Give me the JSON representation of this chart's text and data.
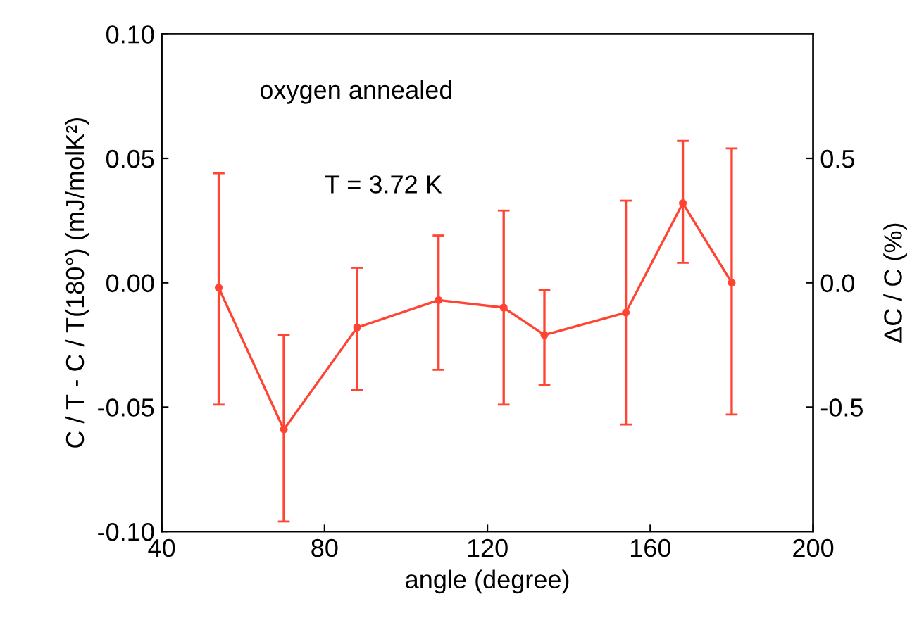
{
  "chart_data": {
    "type": "line",
    "xlabel": "angle (degree)",
    "ylabel": "C / T - C / T(180°) (mJ/molK²)",
    "y2label": "ΔC / C (%)",
    "annotations": [
      "oxygen annealed",
      "T = 3.72 K"
    ],
    "x": [
      54,
      70,
      88,
      108,
      124,
      134,
      154,
      168,
      180
    ],
    "series": [
      {
        "color": "#ff4433",
        "values": [
          -0.002,
          -0.059,
          -0.018,
          -0.007,
          -0.01,
          -0.021,
          -0.012,
          0.032,
          0.0
        ],
        "errors": [
          [
            -0.049,
            0.044
          ],
          [
            -0.096,
            -0.021
          ],
          [
            -0.043,
            0.006
          ],
          [
            -0.035,
            0.019
          ],
          [
            -0.049,
            0.029
          ],
          [
            -0.041,
            -0.003
          ],
          [
            -0.057,
            0.033
          ],
          [
            0.008,
            0.057
          ],
          [
            -0.053,
            0.054
          ]
        ]
      }
    ],
    "xlim": [
      40,
      200
    ],
    "xticks": [
      40,
      80,
      120,
      160,
      200
    ],
    "ylim": [
      -0.1,
      0.1
    ],
    "yticks": [
      {
        "value": -0.1,
        "label": "-0.10"
      },
      {
        "value": -0.05,
        "label": "-0.05"
      },
      {
        "value": 0,
        "label": "0.00"
      },
      {
        "value": 0.05,
        "label": "0.05"
      },
      {
        "value": 0.1,
        "label": "0.10"
      }
    ],
    "y2lim": [
      -1,
      1
    ],
    "y2ticks": [
      {
        "value": -0.5,
        "label": "-0.5"
      },
      {
        "value": 0,
        "label": "0.0"
      },
      {
        "value": 0.5,
        "label": "0.5"
      }
    ],
    "marker": "circle",
    "line_style": "solid",
    "grid": false,
    "legend": false
  }
}
